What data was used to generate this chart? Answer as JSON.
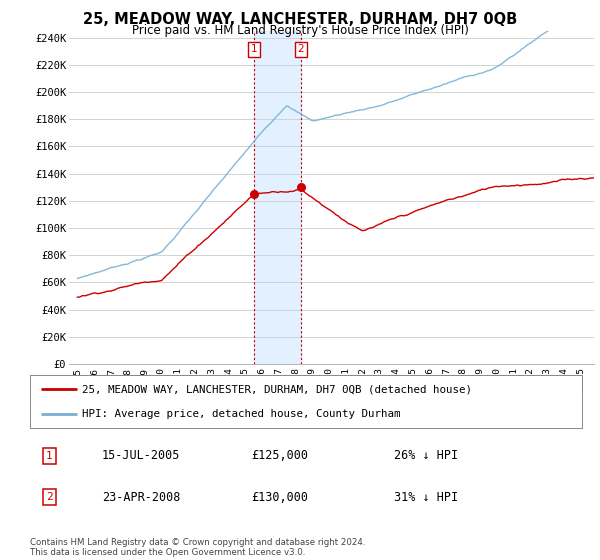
{
  "title": "25, MEADOW WAY, LANCHESTER, DURHAM, DH7 0QB",
  "subtitle": "Price paid vs. HM Land Registry's House Price Index (HPI)",
  "ylabel_ticks": [
    "£0",
    "£20K",
    "£40K",
    "£60K",
    "£80K",
    "£100K",
    "£120K",
    "£140K",
    "£160K",
    "£180K",
    "£200K",
    "£220K",
    "£240K"
  ],
  "ylim": [
    0,
    245000
  ],
  "ytick_vals": [
    0,
    20000,
    40000,
    60000,
    80000,
    100000,
    120000,
    140000,
    160000,
    180000,
    200000,
    220000,
    240000
  ],
  "xlim_start": 1994.5,
  "xlim_end": 2025.8,
  "xtick_years": [
    1995,
    1996,
    1997,
    1998,
    1999,
    2000,
    2001,
    2002,
    2003,
    2004,
    2005,
    2006,
    2007,
    2008,
    2009,
    2010,
    2011,
    2012,
    2013,
    2014,
    2015,
    2016,
    2017,
    2018,
    2019,
    2020,
    2021,
    2022,
    2023,
    2024,
    2025
  ],
  "hpi_color": "#7ab0d4",
  "price_color": "#cc0000",
  "transaction1_x": 2005.54,
  "transaction1_y": 125000,
  "transaction2_x": 2008.31,
  "transaction2_y": 130000,
  "shade_color": "#ddeeff",
  "legend_line1": "25, MEADOW WAY, LANCHESTER, DURHAM, DH7 0QB (detached house)",
  "legend_line2": "HPI: Average price, detached house, County Durham",
  "table_row1": [
    "1",
    "15-JUL-2005",
    "£125,000",
    "26% ↓ HPI"
  ],
  "table_row2": [
    "2",
    "23-APR-2008",
    "£130,000",
    "31% ↓ HPI"
  ],
  "footer": "Contains HM Land Registry data © Crown copyright and database right 2024.\nThis data is licensed under the Open Government Licence v3.0.",
  "bg_color": "#ffffff",
  "grid_color": "#cccccc"
}
